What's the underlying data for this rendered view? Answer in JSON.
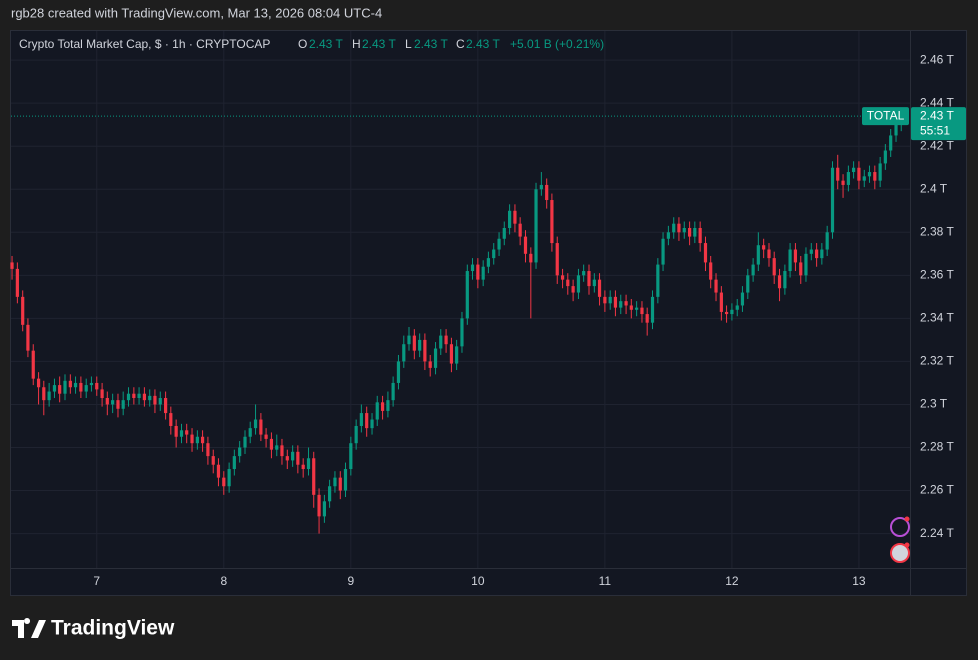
{
  "header": {
    "attribution": "rgb28 created with TradingView.com, Mar 13, 2026 08:04 UTC-4"
  },
  "footer": {
    "brand": "TradingView"
  },
  "chart_data": {
    "type": "candlestick",
    "title": "Crypto Total Market Cap, $ · 1h · CRYPTOCAP",
    "ohlc_legend": [
      {
        "key": "O",
        "value": "2.43 T"
      },
      {
        "key": "H",
        "value": "2.43 T"
      },
      {
        "key": "L",
        "value": "2.43 T"
      },
      {
        "key": "C",
        "value": "2.43 T"
      }
    ],
    "change": "+5.01 B (+0.21%)",
    "symbol_tag": "TOTAL",
    "countdown": "55:51",
    "last_price": {
      "value": 2.434,
      "label": "2.43 T"
    },
    "up_color": "#089981",
    "down_color": "#f23645",
    "grid": true,
    "xlim": [
      6.317,
      13.402
    ],
    "xticks": [
      7,
      8,
      9,
      10,
      11,
      12,
      13
    ],
    "ylim": [
      2.211,
      2.474
    ],
    "yticks": [
      {
        "value": 2.24,
        "label": "2.24 T"
      },
      {
        "value": 2.26,
        "label": "2.26 T"
      },
      {
        "value": 2.28,
        "label": "2.28 T"
      },
      {
        "value": 2.3,
        "label": "2.3 T"
      },
      {
        "value": 2.32,
        "label": "2.32 T"
      },
      {
        "value": 2.34,
        "label": "2.34 T"
      },
      {
        "value": 2.36,
        "label": "2.36 T"
      },
      {
        "value": 2.38,
        "label": "2.38 T"
      },
      {
        "value": 2.4,
        "label": "2.4 T"
      },
      {
        "value": 2.42,
        "label": "2.42 T"
      },
      {
        "value": 2.44,
        "label": "2.44 T"
      },
      {
        "value": 2.46,
        "label": "2.46 T"
      }
    ],
    "x": [
      6.333,
      6.375,
      6.417,
      6.458,
      6.5,
      6.542,
      6.583,
      6.625,
      6.667,
      6.708,
      6.75,
      6.792,
      6.833,
      6.875,
      6.917,
      6.958,
      7,
      7.042,
      7.083,
      7.125,
      7.167,
      7.208,
      7.25,
      7.292,
      7.333,
      7.375,
      7.417,
      7.458,
      7.5,
      7.542,
      7.583,
      7.625,
      7.667,
      7.708,
      7.75,
      7.792,
      7.833,
      7.875,
      7.917,
      7.958,
      8,
      8.042,
      8.083,
      8.125,
      8.167,
      8.208,
      8.25,
      8.292,
      8.333,
      8.375,
      8.417,
      8.458,
      8.5,
      8.542,
      8.583,
      8.625,
      8.667,
      8.708,
      8.75,
      8.792,
      8.833,
      8.875,
      8.917,
      8.958,
      9,
      9.042,
      9.083,
      9.125,
      9.167,
      9.208,
      9.25,
      9.292,
      9.333,
      9.375,
      9.417,
      9.458,
      9.5,
      9.542,
      9.583,
      9.625,
      9.667,
      9.708,
      9.75,
      9.792,
      9.833,
      9.875,
      9.917,
      9.958,
      10,
      10.042,
      10.083,
      10.125,
      10.167,
      10.208,
      10.25,
      10.292,
      10.333,
      10.375,
      10.417,
      10.458,
      10.5,
      10.542,
      10.583,
      10.625,
      10.667,
      10.708,
      10.75,
      10.792,
      10.833,
      10.875,
      10.917,
      10.958,
      11,
      11.042,
      11.083,
      11.125,
      11.167,
      11.208,
      11.25,
      11.292,
      11.333,
      11.375,
      11.417,
      11.458,
      11.5,
      11.542,
      11.583,
      11.625,
      11.667,
      11.708,
      11.75,
      11.792,
      11.833,
      11.875,
      11.917,
      11.958,
      12,
      12.042,
      12.083,
      12.125,
      12.167,
      12.208,
      12.25,
      12.292,
      12.333,
      12.375,
      12.417,
      12.458,
      12.5,
      12.542,
      12.583,
      12.625,
      12.667,
      12.708,
      12.75,
      12.792,
      12.833,
      12.875,
      12.917,
      12.958,
      13,
      13.042,
      13.083,
      13.125,
      13.167,
      13.208,
      13.25,
      13.292,
      13.333
    ],
    "open": [
      2.366,
      2.363,
      2.35,
      2.337,
      2.325,
      2.312,
      2.308,
      2.302,
      2.306,
      2.309,
      2.305,
      2.311,
      2.308,
      2.31,
      2.306,
      2.309,
      2.31,
      2.307,
      2.303,
      2.3,
      2.302,
      2.298,
      2.302,
      2.305,
      2.303,
      2.305,
      2.302,
      2.304,
      2.3,
      2.303,
      2.296,
      2.29,
      2.285,
      2.288,
      2.286,
      2.282,
      2.285,
      2.282,
      2.276,
      2.272,
      2.266,
      2.262,
      2.27,
      2.276,
      2.28,
      2.285,
      2.289,
      2.293,
      2.286,
      2.284,
      2.279,
      2.281,
      2.276,
      2.274,
      2.278,
      2.272,
      2.27,
      2.275,
      2.258,
      2.248,
      2.255,
      2.262,
      2.266,
      2.26,
      2.27,
      2.282,
      2.29,
      2.296,
      2.289,
      2.293,
      2.301,
      2.297,
      2.302,
      2.31,
      2.32,
      2.328,
      2.332,
      2.325,
      2.33,
      2.32,
      2.317,
      2.326,
      2.332,
      2.328,
      2.319,
      2.327,
      2.34,
      2.362,
      2.365,
      2.358,
      2.364,
      2.368,
      2.372,
      2.377,
      2.382,
      2.39,
      2.384,
      2.378,
      2.37,
      2.366,
      2.4,
      2.402,
      2.395,
      2.375,
      2.36,
      2.358,
      2.355,
      2.352,
      2.36,
      2.362,
      2.355,
      2.358,
      2.35,
      2.347,
      2.35,
      2.345,
      2.348,
      2.346,
      2.344,
      2.345,
      2.342,
      2.338,
      2.35,
      2.365,
      2.377,
      2.38,
      2.384,
      2.38,
      2.382,
      2.378,
      2.382,
      2.375,
      2.366,
      2.358,
      2.352,
      2.343,
      2.342,
      2.344,
      2.346,
      2.352,
      2.36,
      2.365,
      2.374,
      2.372,
      2.368,
      2.36,
      2.354,
      2.362,
      2.372,
      2.366,
      2.36,
      2.37,
      2.372,
      2.368,
      2.372,
      2.38,
      2.41,
      2.404,
      2.402,
      2.408,
      2.41,
      2.404,
      2.406,
      2.408,
      2.404,
      2.412,
      2.418,
      2.425,
      2.43
    ],
    "high": [
      2.369,
      2.366,
      2.353,
      2.34,
      2.328,
      2.315,
      2.311,
      2.31,
      2.312,
      2.313,
      2.314,
      2.314,
      2.313,
      2.313,
      2.312,
      2.313,
      2.313,
      2.31,
      2.306,
      2.305,
      2.305,
      2.306,
      2.308,
      2.308,
      2.308,
      2.308,
      2.307,
      2.307,
      2.306,
      2.306,
      2.299,
      2.293,
      2.291,
      2.291,
      2.289,
      2.288,
      2.288,
      2.285,
      2.279,
      2.275,
      2.269,
      2.273,
      2.279,
      2.283,
      2.288,
      2.292,
      2.3,
      2.296,
      2.289,
      2.287,
      2.286,
      2.284,
      2.279,
      2.281,
      2.281,
      2.275,
      2.28,
      2.278,
      2.261,
      2.258,
      2.265,
      2.269,
      2.269,
      2.273,
      2.285,
      2.293,
      2.3,
      2.299,
      2.296,
      2.304,
      2.304,
      2.306,
      2.313,
      2.323,
      2.332,
      2.336,
      2.335,
      2.333,
      2.333,
      2.323,
      2.329,
      2.335,
      2.335,
      2.331,
      2.33,
      2.343,
      2.365,
      2.368,
      2.368,
      2.367,
      2.371,
      2.375,
      2.38,
      2.385,
      2.393,
      2.393,
      2.387,
      2.381,
      2.373,
      2.403,
      2.408,
      2.405,
      2.398,
      2.378,
      2.363,
      2.361,
      2.358,
      2.363,
      2.365,
      2.365,
      2.361,
      2.361,
      2.353,
      2.353,
      2.353,
      2.351,
      2.351,
      2.349,
      2.348,
      2.348,
      2.345,
      2.353,
      2.368,
      2.38,
      2.383,
      2.387,
      2.387,
      2.385,
      2.385,
      2.385,
      2.385,
      2.378,
      2.369,
      2.361,
      2.355,
      2.346,
      2.347,
      2.349,
      2.355,
      2.363,
      2.368,
      2.38,
      2.377,
      2.375,
      2.371,
      2.363,
      2.365,
      2.375,
      2.375,
      2.369,
      2.373,
      2.375,
      2.375,
      2.375,
      2.383,
      2.413,
      2.416,
      2.407,
      2.411,
      2.413,
      2.413,
      2.409,
      2.411,
      2.411,
      2.415,
      2.421,
      2.428,
      2.433,
      2.437
    ],
    "low": [
      2.358,
      2.347,
      2.334,
      2.322,
      2.309,
      2.3,
      2.295,
      2.299,
      2.303,
      2.301,
      2.302,
      2.305,
      2.305,
      2.303,
      2.303,
      2.306,
      2.304,
      2.299,
      2.295,
      2.296,
      2.294,
      2.295,
      2.299,
      2.3,
      2.3,
      2.299,
      2.299,
      2.296,
      2.297,
      2.293,
      2.286,
      2.28,
      2.282,
      2.282,
      2.278,
      2.279,
      2.278,
      2.272,
      2.268,
      2.262,
      2.258,
      2.259,
      2.267,
      2.273,
      2.277,
      2.282,
      2.286,
      2.283,
      2.28,
      2.275,
      2.276,
      2.272,
      2.27,
      2.271,
      2.268,
      2.266,
      2.267,
      2.252,
      2.24,
      2.245,
      2.252,
      2.259,
      2.256,
      2.257,
      2.267,
      2.279,
      2.287,
      2.285,
      2.286,
      2.29,
      2.293,
      2.294,
      2.299,
      2.307,
      2.317,
      2.325,
      2.321,
      2.322,
      2.316,
      2.313,
      2.314,
      2.323,
      2.324,
      2.315,
      2.316,
      2.324,
      2.337,
      2.358,
      2.354,
      2.355,
      2.361,
      2.365,
      2.369,
      2.374,
      2.379,
      2.38,
      2.374,
      2.366,
      2.34,
      2.363,
      2.397,
      2.391,
      2.371,
      2.356,
      2.354,
      2.351,
      2.348,
      2.349,
      2.357,
      2.351,
      2.352,
      2.346,
      2.343,
      2.344,
      2.341,
      2.342,
      2.342,
      2.34,
      2.341,
      2.338,
      2.332,
      2.335,
      2.347,
      2.362,
      2.374,
      2.377,
      2.376,
      2.377,
      2.374,
      2.375,
      2.371,
      2.362,
      2.354,
      2.348,
      2.339,
      2.338,
      2.339,
      2.341,
      2.343,
      2.349,
      2.357,
      2.362,
      2.368,
      2.364,
      2.356,
      2.348,
      2.351,
      2.359,
      2.362,
      2.356,
      2.357,
      2.367,
      2.364,
      2.365,
      2.369,
      2.377,
      2.4,
      2.396,
      2.399,
      2.405,
      2.4,
      2.401,
      2.403,
      2.4,
      2.401,
      2.409,
      2.415,
      2.422,
      2.427
    ],
    "close": [
      2.363,
      2.35,
      2.337,
      2.325,
      2.312,
      2.308,
      2.302,
      2.306,
      2.309,
      2.305,
      2.311,
      2.308,
      2.31,
      2.306,
      2.309,
      2.31,
      2.307,
      2.303,
      2.3,
      2.302,
      2.298,
      2.302,
      2.305,
      2.303,
      2.305,
      2.302,
      2.304,
      2.3,
      2.303,
      2.296,
      2.29,
      2.285,
      2.288,
      2.286,
      2.282,
      2.285,
      2.282,
      2.276,
      2.272,
      2.266,
      2.262,
      2.27,
      2.276,
      2.28,
      2.285,
      2.289,
      2.293,
      2.286,
      2.284,
      2.279,
      2.281,
      2.276,
      2.274,
      2.278,
      2.272,
      2.27,
      2.275,
      2.258,
      2.248,
      2.255,
      2.262,
      2.266,
      2.26,
      2.27,
      2.282,
      2.29,
      2.296,
      2.289,
      2.293,
      2.301,
      2.297,
      2.302,
      2.31,
      2.32,
      2.328,
      2.332,
      2.325,
      2.33,
      2.32,
      2.317,
      2.326,
      2.332,
      2.328,
      2.319,
      2.327,
      2.34,
      2.362,
      2.365,
      2.358,
      2.364,
      2.368,
      2.372,
      2.377,
      2.382,
      2.39,
      2.384,
      2.378,
      2.37,
      2.366,
      2.4,
      2.402,
      2.395,
      2.375,
      2.36,
      2.358,
      2.355,
      2.352,
      2.36,
      2.362,
      2.355,
      2.358,
      2.35,
      2.347,
      2.35,
      2.345,
      2.348,
      2.346,
      2.344,
      2.345,
      2.342,
      2.338,
      2.35,
      2.365,
      2.377,
      2.38,
      2.384,
      2.38,
      2.382,
      2.378,
      2.382,
      2.375,
      2.366,
      2.358,
      2.352,
      2.343,
      2.342,
      2.344,
      2.346,
      2.352,
      2.36,
      2.365,
      2.374,
      2.372,
      2.368,
      2.36,
      2.354,
      2.362,
      2.372,
      2.366,
      2.36,
      2.37,
      2.372,
      2.368,
      2.372,
      2.38,
      2.41,
      2.404,
      2.402,
      2.408,
      2.41,
      2.404,
      2.406,
      2.408,
      2.404,
      2.412,
      2.418,
      2.425,
      2.43,
      2.434
    ]
  }
}
